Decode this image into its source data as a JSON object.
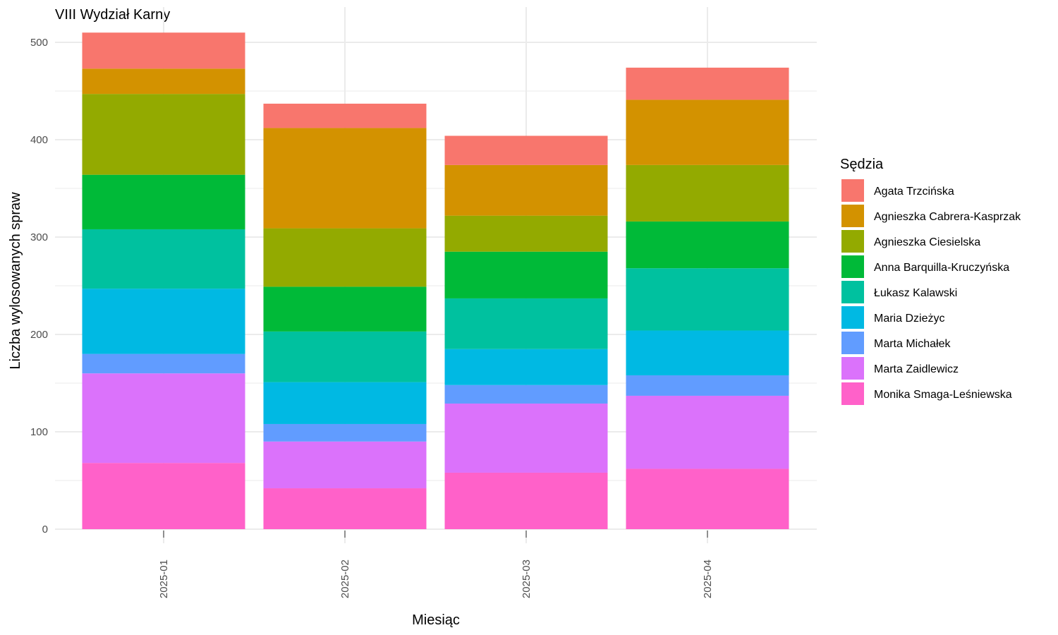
{
  "chart_data": {
    "type": "bar",
    "stacked": true,
    "title": "VIII Wydział Karny",
    "xlabel": "Miesiąc",
    "ylabel": "Liczba wylosowanych spraw",
    "ylim": [
      0,
      515
    ],
    "yticks": [
      0,
      100,
      200,
      300,
      400,
      500
    ],
    "grid": true,
    "legend_title": "Sędzia",
    "legend_position": "right",
    "categories": [
      "2025-01",
      "2025-02",
      "2025-03",
      "2025-04"
    ],
    "series": [
      {
        "name": "Monika Smaga-Leśniewska",
        "color": "#FF61C9",
        "values": [
          68,
          42,
          58,
          62
        ]
      },
      {
        "name": "Marta Zaidlewicz",
        "color": "#DB72FB",
        "values": [
          92,
          48,
          71,
          75
        ]
      },
      {
        "name": "Marta Michałek",
        "color": "#619CFF",
        "values": [
          20,
          18,
          19,
          21
        ]
      },
      {
        "name": "Maria Dzieżyc",
        "color": "#00B9E3",
        "values": [
          67,
          43,
          37,
          46
        ]
      },
      {
        "name": "Łukasz Kalawski",
        "color": "#00C19F",
        "values": [
          61,
          52,
          52,
          64
        ]
      },
      {
        "name": "Anna Barquilla-Kruczyńska",
        "color": "#00BA38",
        "values": [
          56,
          46,
          48,
          48
        ]
      },
      {
        "name": "Agnieszka Ciesielska",
        "color": "#93AA00",
        "values": [
          83,
          60,
          37,
          58
        ]
      },
      {
        "name": "Agnieszka Cabrera-Kasprzak",
        "color": "#D39200",
        "values": [
          26,
          103,
          52,
          67
        ]
      },
      {
        "name": "Agata Trzcińska",
        "color": "#F8766D",
        "values": [
          37,
          25,
          30,
          33
        ]
      }
    ],
    "legend_order": [
      "Agata Trzcińska",
      "Agnieszka Cabrera-Kasprzak",
      "Agnieszka Ciesielska",
      "Anna Barquilla-Kruczyńska",
      "Łukasz Kalawski",
      "Maria Dzieżyc",
      "Marta Michałek",
      "Marta Zaidlewicz",
      "Monika Smaga-Leśniewska"
    ]
  }
}
